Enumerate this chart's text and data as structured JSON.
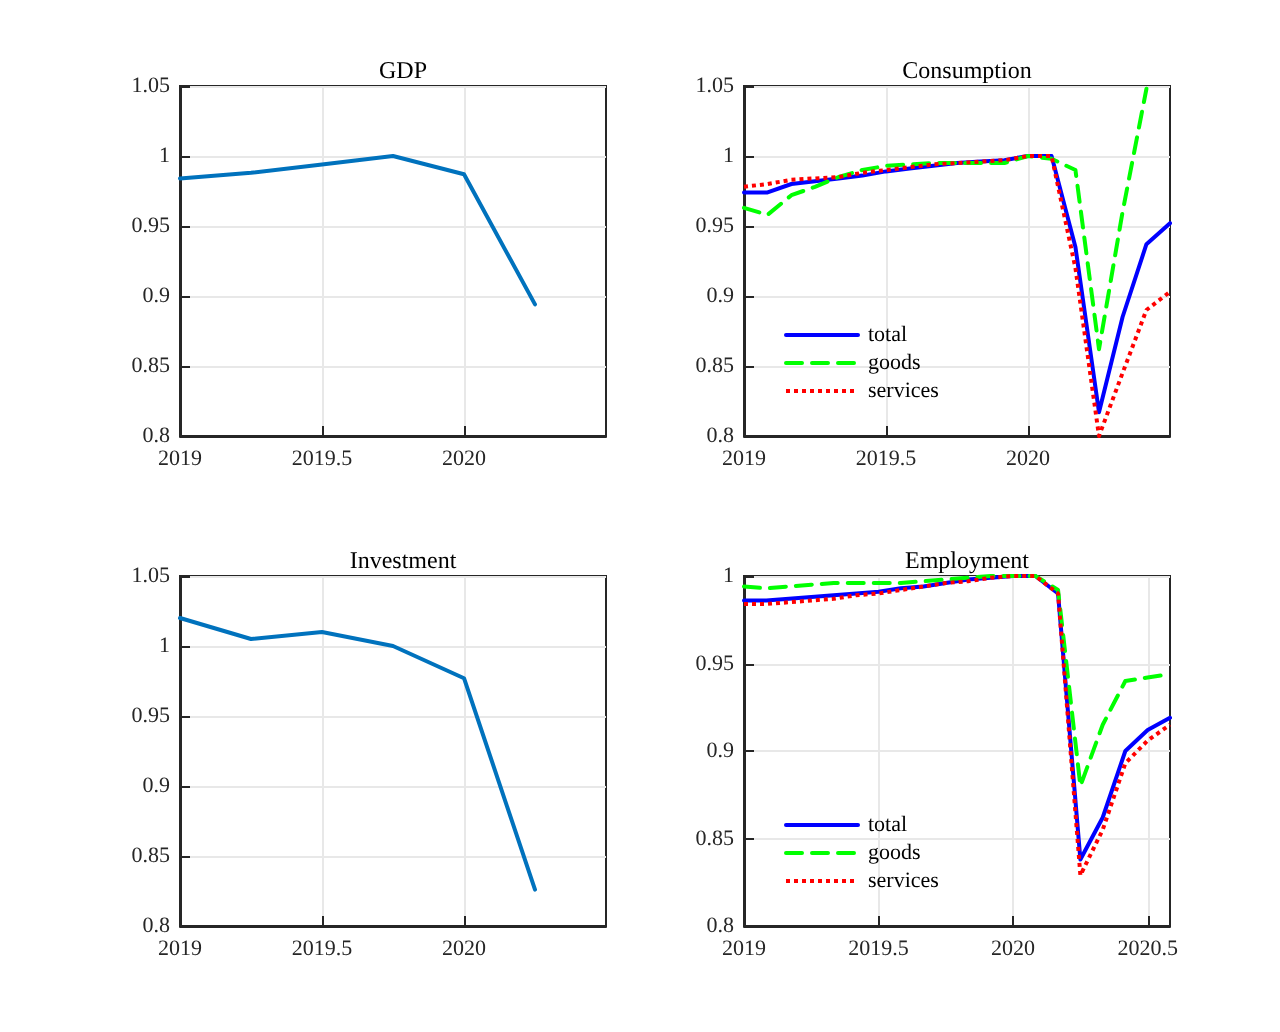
{
  "chart_data": [
    {
      "type": "line",
      "title": "GDP",
      "x": [
        2019,
        2019.25,
        2019.5,
        2019.75,
        2020,
        2020.25
      ],
      "values": [
        0.984,
        0.988,
        0.994,
        1.0,
        0.987,
        0.894
      ],
      "color": "#0072bd",
      "xlim": [
        2019,
        2020.5
      ],
      "xticks": [
        2019,
        2019.5,
        2020
      ],
      "ylim": [
        0.8,
        1.05
      ],
      "yticks": [
        0.8,
        0.85,
        0.9,
        0.95,
        1,
        1.05
      ],
      "grid": true,
      "marker": "none",
      "line_style": "solid"
    },
    {
      "type": "line",
      "title": "Consumption",
      "x": [
        2019,
        2019.083,
        2019.167,
        2019.25,
        2019.333,
        2019.417,
        2019.5,
        2019.583,
        2019.667,
        2019.75,
        2019.833,
        2019.917,
        2020,
        2020.083,
        2020.167,
        2020.25,
        2020.333,
        2020.417,
        2020.5
      ],
      "series": [
        {
          "name": "total",
          "color": "#0000ff",
          "line_style": "solid",
          "values": [
            0.974,
            0.974,
            0.98,
            0.982,
            0.984,
            0.986,
            0.989,
            0.991,
            0.993,
            0.995,
            0.996,
            0.997,
            1.0,
            1.0,
            0.935,
            0.817,
            0.885,
            0.937,
            0.952
          ]
        },
        {
          "name": "goods",
          "color": "#00ff00",
          "line_style": "dashed",
          "values": [
            0.963,
            0.958,
            0.972,
            0.978,
            0.985,
            0.99,
            0.993,
            0.994,
            0.995,
            0.995,
            0.995,
            0.995,
            1.0,
            0.998,
            0.99,
            0.862,
            0.96,
            1.048,
            null
          ]
        },
        {
          "name": "services",
          "color": "#ff0000",
          "line_style": "dotted",
          "values": [
            0.978,
            0.98,
            0.983,
            0.984,
            0.985,
            0.988,
            0.99,
            0.992,
            0.994,
            0.995,
            0.996,
            0.997,
            1.0,
            1.0,
            0.92,
            0.8,
            0.845,
            0.89,
            0.903
          ]
        }
      ],
      "xlim": [
        2019,
        2020.5
      ],
      "xticks": [
        2019,
        2019.5,
        2020
      ],
      "ylim": [
        0.8,
        1.05
      ],
      "yticks": [
        0.8,
        0.85,
        0.9,
        0.95,
        1,
        1.05
      ],
      "grid": true,
      "legend": "bottom left",
      "marker": "none"
    },
    {
      "type": "line",
      "title": "Investment",
      "x": [
        2019,
        2019.25,
        2019.5,
        2019.75,
        2020,
        2020.25
      ],
      "values": [
        1.02,
        1.005,
        1.01,
        1.0,
        0.977,
        0.826
      ],
      "color": "#0072bd",
      "xlim": [
        2019,
        2020.5
      ],
      "xticks": [
        2019,
        2019.5,
        2020
      ],
      "ylim": [
        0.8,
        1.05
      ],
      "yticks": [
        0.8,
        0.85,
        0.9,
        0.95,
        1,
        1.05
      ],
      "grid": true,
      "marker": "none",
      "line_style": "solid"
    },
    {
      "type": "line",
      "title": "Employment",
      "x": [
        2019,
        2019.083,
        2019.167,
        2019.25,
        2019.333,
        2019.417,
        2019.5,
        2019.583,
        2019.667,
        2019.75,
        2019.833,
        2019.917,
        2020,
        2020.083,
        2020.167,
        2020.25,
        2020.333,
        2020.417,
        2020.5,
        2020.583
      ],
      "series": [
        {
          "name": "total",
          "color": "#0000ff",
          "line_style": "solid",
          "values": [
            0.986,
            0.986,
            0.987,
            0.988,
            0.989,
            0.99,
            0.991,
            0.993,
            0.994,
            0.996,
            0.998,
            0.999,
            1.0,
            1.0,
            0.99,
            0.838,
            0.862,
            0.9,
            0.912,
            0.919
          ]
        },
        {
          "name": "goods",
          "color": "#00ff00",
          "line_style": "dashed",
          "values": [
            0.994,
            0.993,
            0.994,
            0.995,
            0.996,
            0.996,
            0.996,
            0.996,
            0.997,
            0.998,
            0.999,
            1.0,
            1.0,
            1.0,
            0.992,
            0.88,
            0.915,
            0.94,
            0.942,
            0.944
          ]
        },
        {
          "name": "services",
          "color": "#ff0000",
          "line_style": "dotted",
          "values": [
            0.984,
            0.984,
            0.985,
            0.986,
            0.987,
            0.989,
            0.99,
            0.992,
            0.994,
            0.996,
            0.997,
            0.999,
            1.0,
            1.0,
            0.99,
            0.829,
            0.855,
            0.893,
            0.906,
            0.915
          ]
        }
      ],
      "xlim": [
        2019,
        2020.583
      ],
      "xticks": [
        2019,
        2019.5,
        2020,
        2020.5
      ],
      "ylim": [
        0.8,
        1.0
      ],
      "yticks": [
        0.8,
        0.85,
        0.9,
        0.95,
        1
      ],
      "grid": true,
      "legend": "bottom left",
      "marker": "none"
    }
  ]
}
